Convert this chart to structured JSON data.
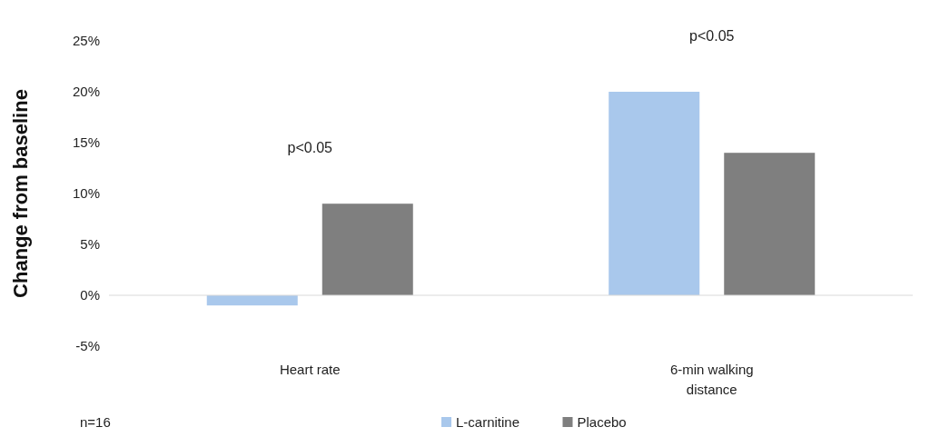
{
  "chart_data": {
    "type": "bar",
    "ylabel": "Change from baseline",
    "categories": [
      "Heart rate",
      "6-min walking distance"
    ],
    "series": [
      {
        "name": "L-carnitine",
        "color": "#a9c8ec",
        "values": [
          -1,
          20
        ]
      },
      {
        "name": "Placebo",
        "color": "#7f7f7f",
        "values": [
          9,
          14
        ]
      }
    ],
    "ylim": [
      -5,
      25
    ],
    "yticks": [
      {
        "value": -5,
        "label": "-5%"
      },
      {
        "value": 0,
        "label": "0%"
      },
      {
        "value": 5,
        "label": "5%"
      },
      {
        "value": 10,
        "label": "10%"
      },
      {
        "value": 15,
        "label": "15%"
      },
      {
        "value": 20,
        "label": "20%"
      },
      {
        "value": 25,
        "label": "25%"
      }
    ],
    "legend": "bottom",
    "annotations": [
      "p<0.05",
      "p<0.05",
      "n=16"
    ]
  }
}
